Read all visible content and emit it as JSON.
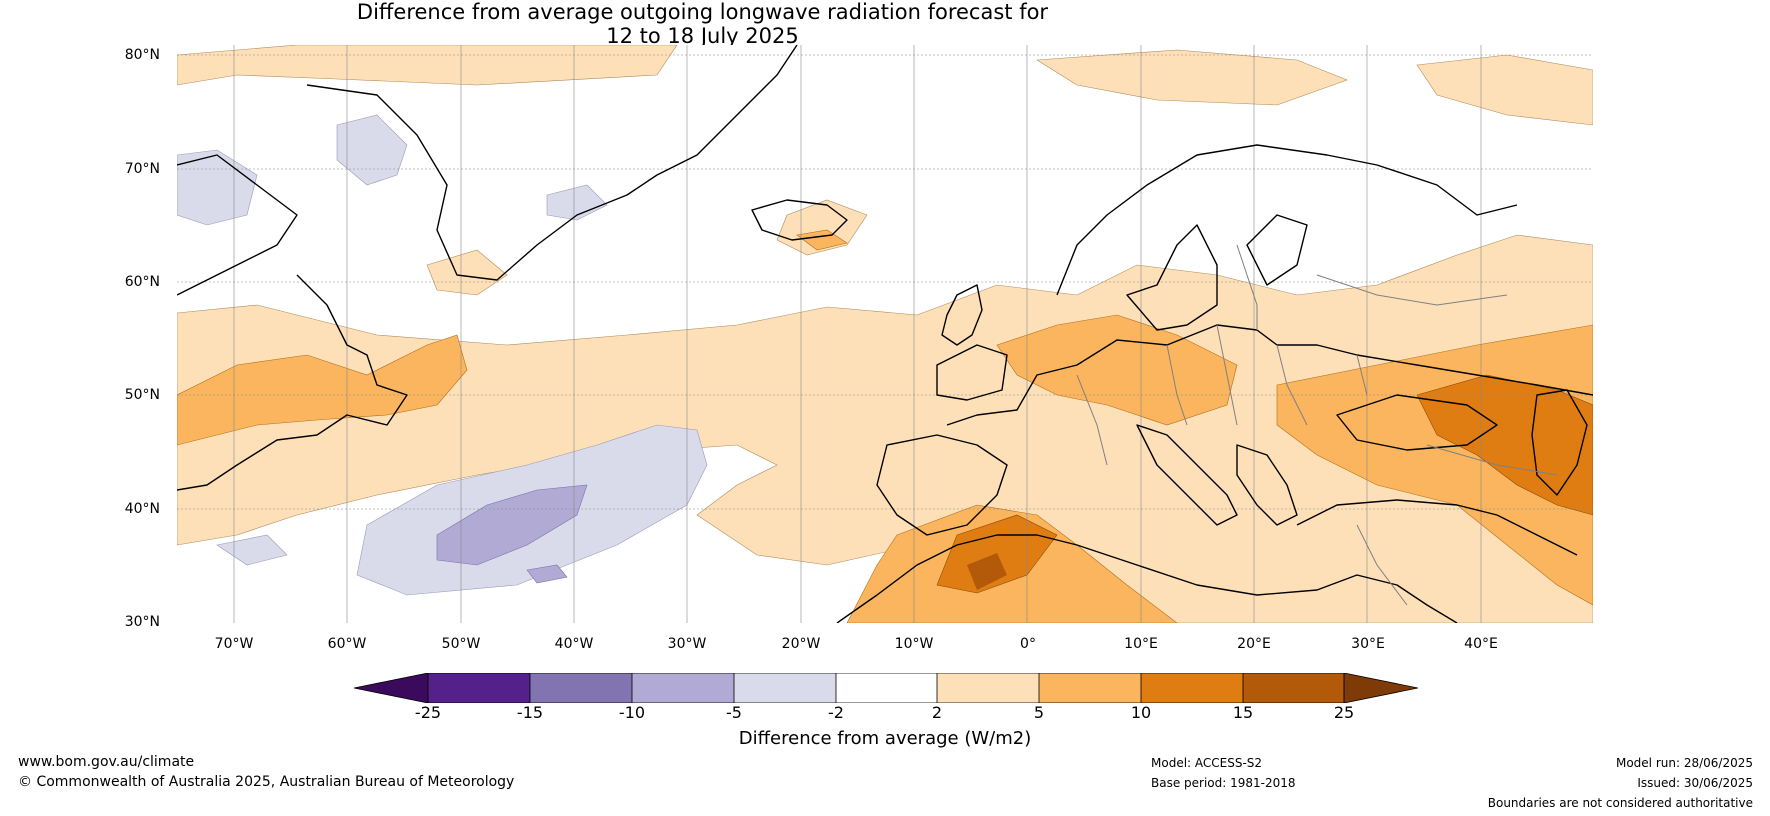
{
  "title": {
    "line1": "Difference from average outgoing longwave radiation forecast for",
    "line2": "12 to 18 July 2025"
  },
  "map": {
    "latitude_labels": [
      "80°N",
      "70°N",
      "60°N",
      "50°N",
      "40°N",
      "30°N"
    ],
    "longitude_labels": [
      "70°W",
      "60°W",
      "50°W",
      "40°W",
      "30°W",
      "20°W",
      "10°W",
      "0°",
      "10°E",
      "20°E",
      "30°E",
      "40°E"
    ],
    "palette": {
      "below_-25": "#3b0a5c",
      "-25_-15": "#54208a",
      "-15_-10": "#8174b0",
      "-10_-5": "#b1aad4",
      "-5_-2": "#d9daea",
      "-2_2": "#ffffff",
      "2_5": "#fde0b8",
      "5_10": "#fbb55e",
      "10_15": "#df7d13",
      "15_25": "#b25a09",
      "above_25": "#7e3b08"
    },
    "coastline_color": "#000000",
    "border_color": "#808080"
  },
  "colorbar": {
    "ticks": [
      "-25",
      "-15",
      "-10",
      "-5",
      "-2",
      "2",
      "5",
      "10",
      "15",
      "25"
    ],
    "label": "Difference from average (W/m2)"
  },
  "footer": {
    "website": "www.bom.gov.au/climate",
    "copyright": "© Commonwealth of Australia 2025, Australian Bureau of Meteorology",
    "model": "Model: ACCESS-S2",
    "base_period": "Base period: 1981-2018",
    "model_run": "Model run: 28/06/2025",
    "issued": "Issued: 30/06/2025",
    "disclaimer": "Boundaries are not considered authoritative"
  }
}
